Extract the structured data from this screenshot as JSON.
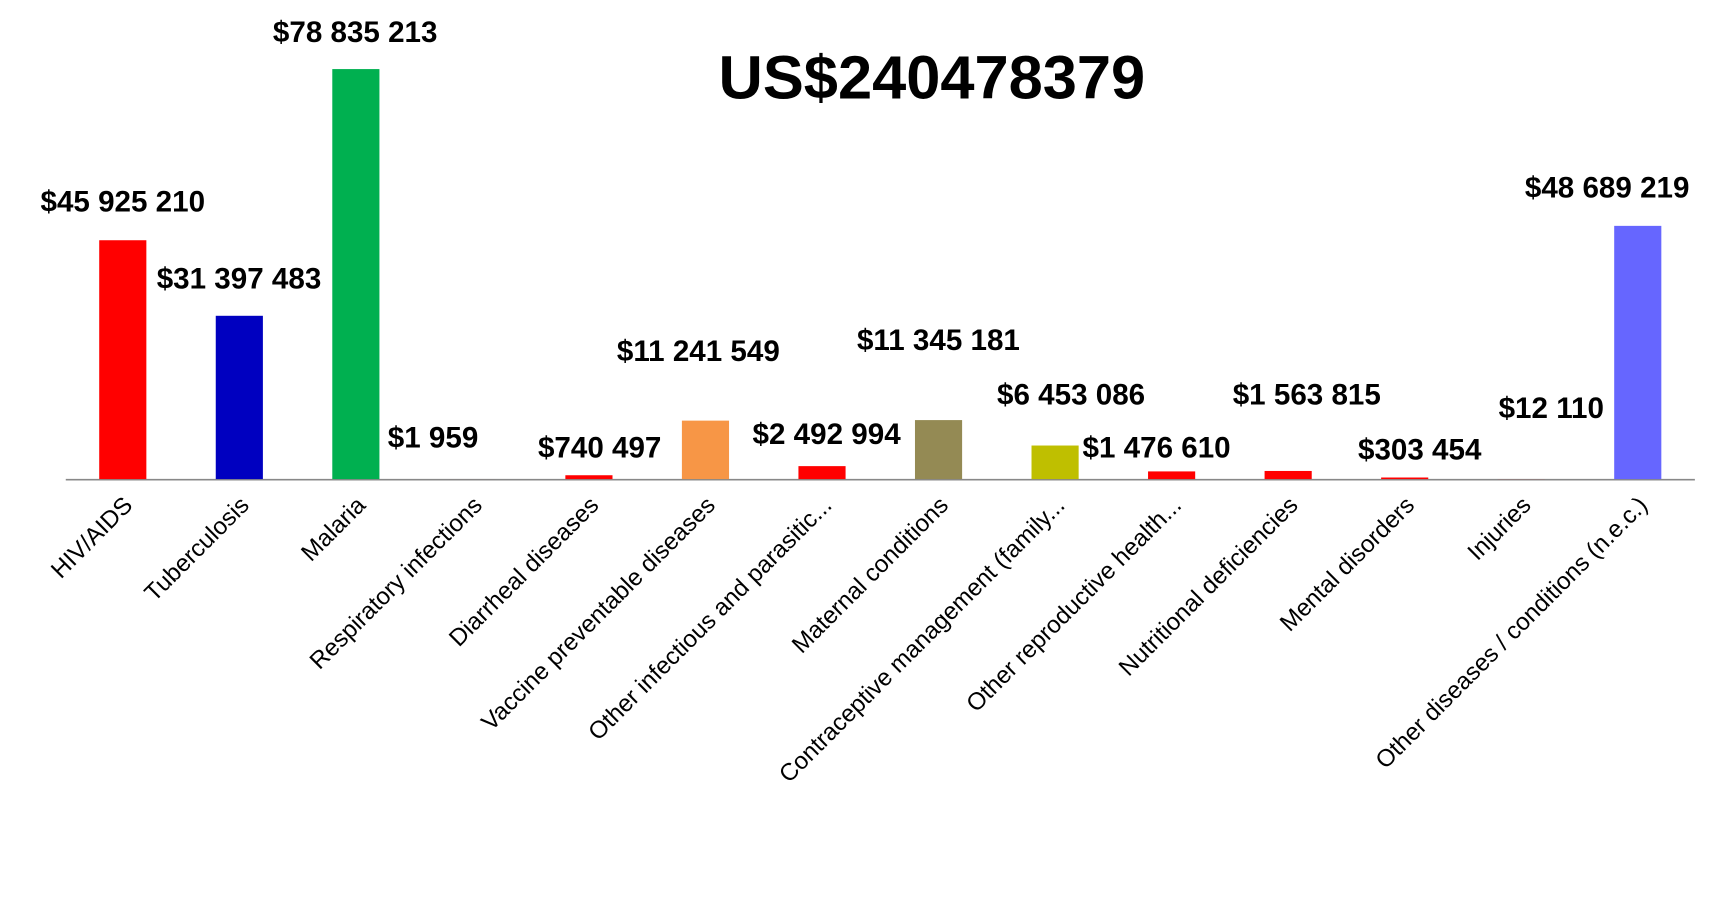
{
  "chart_data": {
    "type": "bar",
    "title": "US$240478379",
    "categories": [
      "HIV/AIDS",
      "Tuberculosis",
      "Malaria",
      "Respiratory infections",
      "Diarrheal diseases",
      "Vaccine preventable diseases",
      "Other infectious and parasitic...",
      "Maternal conditions",
      "Contraceptive management (family...",
      "Other reproductive health...",
      "Nutritional deficiencies",
      "Mental disorders",
      "Injuries",
      "Other diseases / conditions (n.e.c.)"
    ],
    "values": [
      45925210,
      31397483,
      78835213,
      1959,
      740497,
      11241549,
      2492994,
      11345181,
      6453086,
      1476610,
      1563815,
      303454,
      12110,
      48689219
    ],
    "value_labels": [
      "$45 925 210",
      "$31 397 483",
      "$78 835 213",
      "$1 959",
      "$740 497",
      "$11 241 549",
      "$2 492 994",
      "$11 345 181",
      "$6 453 086",
      "$1 476 610",
      "$1 563 815",
      "$303 454",
      "$12 110",
      "$48 689 219"
    ],
    "colors": [
      "#ff0000",
      "#0000c0",
      "#00b050",
      "#ff0000",
      "#ff0000",
      "#f79646",
      "#ff0000",
      "#948a54",
      "#bfbf00",
      "#ff0000",
      "#ff0000",
      "#ff0000",
      "#ff0000",
      "#6666ff"
    ]
  }
}
